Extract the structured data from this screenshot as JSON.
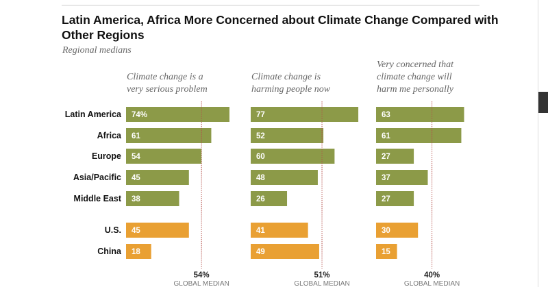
{
  "chart_data": {
    "type": "bar",
    "orientation": "horizontal",
    "title": "Latin America, Africa More Concerned about Climate Change Compared with Other Regions",
    "subtitle": "Regional medians",
    "categories": [
      "Latin America",
      "Africa",
      "Europe",
      "Asia/Pacific",
      "Middle East",
      "U.S.",
      "China"
    ],
    "category_colors": [
      "#8c9a48",
      "#8c9a48",
      "#8c9a48",
      "#8c9a48",
      "#8c9a48",
      "#e9a033",
      "#e9a033"
    ],
    "unit_suffix_first": "%",
    "median_label": "GLOBAL MEDIAN",
    "series": [
      {
        "name": "Climate change is a very serious problem",
        "name_lines": [
          "Climate change is a",
          "very serious problem"
        ],
        "values": [
          74,
          61,
          54,
          45,
          38,
          45,
          18
        ],
        "global_median": 54,
        "median_text": "54%"
      },
      {
        "name": "Climate change is harming people now",
        "name_lines": [
          "Climate change is",
          "harming people now"
        ],
        "values": [
          77,
          52,
          60,
          48,
          26,
          41,
          49
        ],
        "global_median": 51,
        "median_text": "51%"
      },
      {
        "name": "Very concerned that climate change will harm me personally",
        "name_lines": [
          "Very concerned that",
          "climate change will",
          "harm me personally"
        ],
        "values": [
          63,
          61,
          27,
          37,
          27,
          30,
          15
        ],
        "global_median": 40,
        "median_text": "40%"
      }
    ],
    "xlim": [
      0,
      100
    ],
    "grid": false,
    "colors": {
      "regions": "#8c9a48",
      "countries": "#e9a033",
      "median_line": "#b5504a"
    }
  }
}
